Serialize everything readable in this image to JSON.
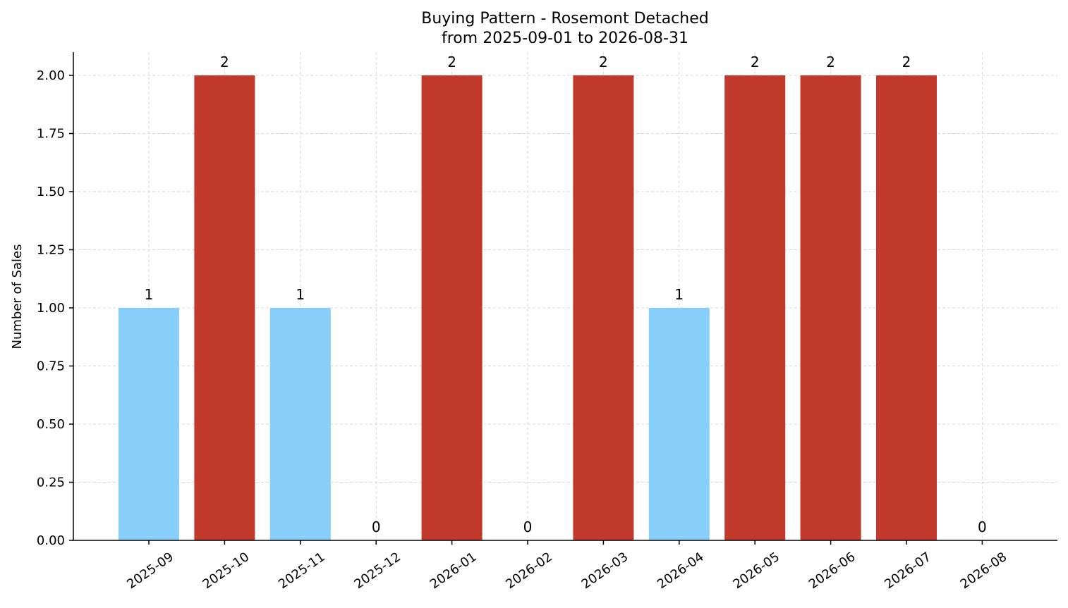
{
  "chart_data": {
    "type": "bar",
    "title": "Buying Pattern - Rosemont Detached",
    "subtitle": "from 2025-09-01 to 2026-08-31",
    "xlabel": "",
    "ylabel": "Number of Sales",
    "categories": [
      "2025-09",
      "2025-10",
      "2025-11",
      "2025-12",
      "2026-01",
      "2026-02",
      "2026-03",
      "2026-04",
      "2026-05",
      "2026-06",
      "2026-07",
      "2026-08"
    ],
    "values": [
      1,
      2,
      1,
      0,
      2,
      0,
      2,
      1,
      2,
      2,
      2,
      0
    ],
    "data_labels": [
      "1",
      "2",
      "1",
      "0",
      "2",
      "0",
      "2",
      "1",
      "2",
      "2",
      "2",
      "0"
    ],
    "ylim": [
      0,
      2.1
    ],
    "yticks": [
      0,
      0.25,
      0.5,
      0.75,
      1.0,
      1.25,
      1.5,
      1.75,
      2.0
    ],
    "ytick_labels": [
      "0.00",
      "0.25",
      "0.50",
      "0.75",
      "1.00",
      "1.25",
      "1.50",
      "1.75",
      "2.00"
    ],
    "grid": true,
    "colors": {
      "high": "#c0392b",
      "low": "#87cefa"
    }
  }
}
